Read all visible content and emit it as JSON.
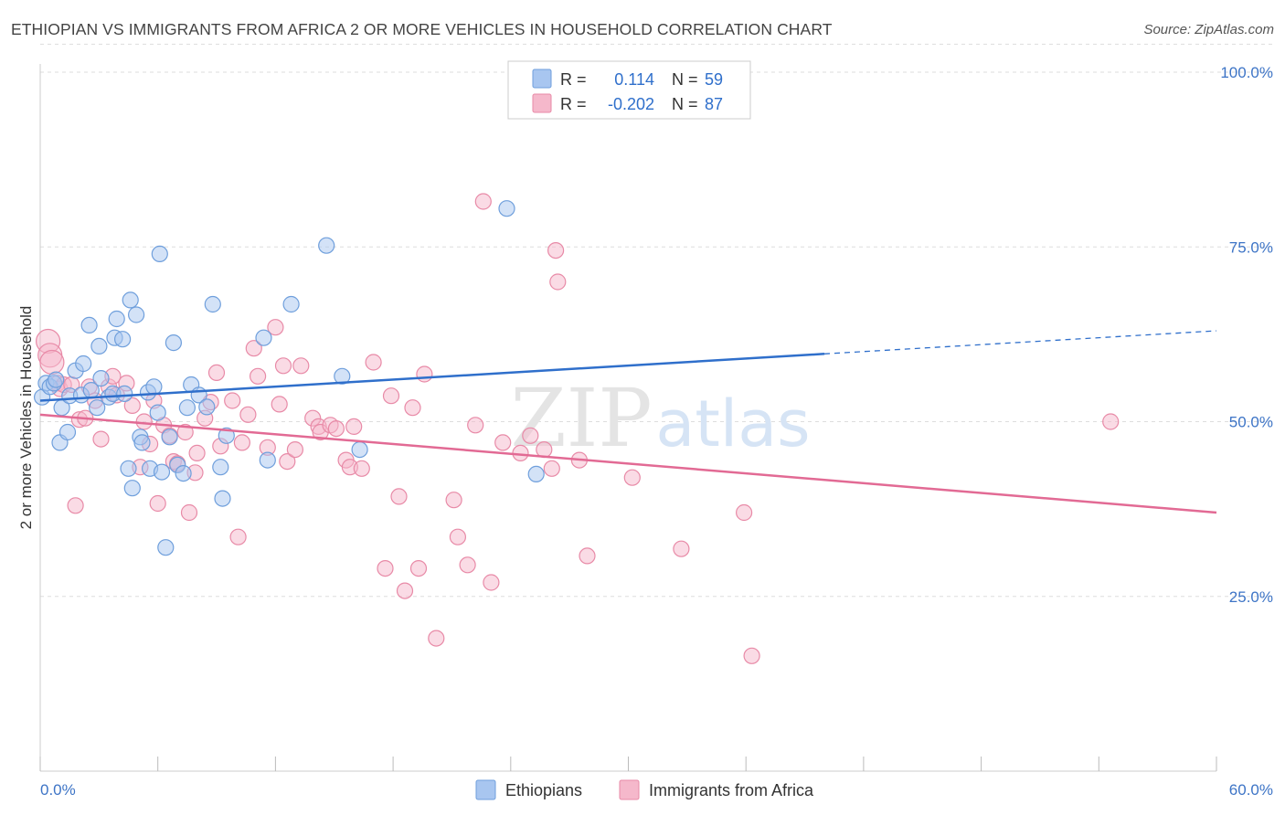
{
  "header": {
    "title": "ETHIOPIAN VS IMMIGRANTS FROM AFRICA 2 OR MORE VEHICLES IN HOUSEHOLD CORRELATION CHART",
    "source": "Source: ZipAtlas.com"
  },
  "watermark": {
    "zip": "ZIP",
    "atlas": "atlas"
  },
  "legend_box": {
    "rows": [
      {
        "r_label": "R =",
        "r_value": "0.114",
        "n_label": "N =",
        "n_value": "59",
        "color": "#a8c6f0"
      },
      {
        "r_label": "R =",
        "r_value": "-0.202",
        "n_label": "N =",
        "n_value": "87",
        "color": "#f5b8cb"
      }
    ]
  },
  "colors": {
    "blue_fill": "#a8c6f0",
    "blue_stroke": "#6f9fdc",
    "blue_line": "#2f6fcb",
    "pink_fill": "#f5b8cb",
    "pink_stroke": "#e88aa7",
    "pink_line": "#e26a94",
    "axis_text": "#3d74c6",
    "grid": "#dddddd"
  },
  "chart_data": {
    "type": "scatter",
    "title": "ETHIOPIAN VS IMMIGRANTS FROM AFRICA 2 OR MORE VEHICLES IN HOUSEHOLD CORRELATION CHART",
    "xlabel": "",
    "ylabel": "2 or more Vehicles in Household",
    "xlim": [
      0,
      60
    ],
    "ylim": [
      0,
      105
    ],
    "x_tick_labels": [
      "0.0%",
      "60.0%"
    ],
    "y_ticks": [
      25,
      50,
      75,
      100
    ],
    "y_tick_labels": [
      "25.0%",
      "50.0%",
      "75.0%",
      "100.0%"
    ],
    "grid": true,
    "legend_position": "bottom",
    "series": [
      {
        "name": "Ethiopians",
        "r": 0.114,
        "n": 59,
        "trend": {
          "x0": 0,
          "y0": 53.0,
          "x1": 40,
          "y1": 59.7,
          "dash_to_x": 60,
          "dash_to_y": 63.0
        },
        "points": [
          [
            0.1,
            53.5
          ],
          [
            0.3,
            55.5
          ],
          [
            0.5,
            55.0
          ],
          [
            0.7,
            55.5
          ],
          [
            0.8,
            56.0
          ],
          [
            1.0,
            47.0
          ],
          [
            1.1,
            52.0
          ],
          [
            1.4,
            48.5
          ],
          [
            1.5,
            53.7
          ],
          [
            1.8,
            57.3
          ],
          [
            2.1,
            53.8
          ],
          [
            2.2,
            58.3
          ],
          [
            2.5,
            63.8
          ],
          [
            2.6,
            54.5
          ],
          [
            2.9,
            52.0
          ],
          [
            3.0,
            60.8
          ],
          [
            3.1,
            56.2
          ],
          [
            3.5,
            53.5
          ],
          [
            3.7,
            54.0
          ],
          [
            3.8,
            62.0
          ],
          [
            3.9,
            64.7
          ],
          [
            4.2,
            61.8
          ],
          [
            4.3,
            54.0
          ],
          [
            4.5,
            43.3
          ],
          [
            4.6,
            67.4
          ],
          [
            4.7,
            40.5
          ],
          [
            4.9,
            65.3
          ],
          [
            5.1,
            47.8
          ],
          [
            5.2,
            47.0
          ],
          [
            5.5,
            54.2
          ],
          [
            5.6,
            43.3
          ],
          [
            5.8,
            55.0
          ],
          [
            6.0,
            51.3
          ],
          [
            6.1,
            74.0
          ],
          [
            6.2,
            42.8
          ],
          [
            6.4,
            32.0
          ],
          [
            6.6,
            47.8
          ],
          [
            6.8,
            61.3
          ],
          [
            7.0,
            43.8
          ],
          [
            7.3,
            42.6
          ],
          [
            7.5,
            52.0
          ],
          [
            7.7,
            55.3
          ],
          [
            8.1,
            53.8
          ],
          [
            8.5,
            52.1
          ],
          [
            8.8,
            66.8
          ],
          [
            9.2,
            43.5
          ],
          [
            9.3,
            39.0
          ],
          [
            9.5,
            48.0
          ],
          [
            11.4,
            62.0
          ],
          [
            11.6,
            44.5
          ],
          [
            12.8,
            66.8
          ],
          [
            14.6,
            75.2
          ],
          [
            15.4,
            56.5
          ],
          [
            16.3,
            46.0
          ],
          [
            23.8,
            80.5
          ],
          [
            25.3,
            42.5
          ]
        ]
      },
      {
        "name": "Immigrants from Africa",
        "r": -0.202,
        "n": 87,
        "trend": {
          "x0": 0,
          "y0": 51.0,
          "x1": 60,
          "y1": 37.0
        },
        "points": [
          [
            0.4,
            61.5
          ],
          [
            0.5,
            59.5
          ],
          [
            0.6,
            58.5
          ],
          [
            0.9,
            55.5
          ],
          [
            1.0,
            54.7
          ],
          [
            1.2,
            55.3
          ],
          [
            1.6,
            55.3
          ],
          [
            1.8,
            38.0
          ],
          [
            2.0,
            50.3
          ],
          [
            2.3,
            50.5
          ],
          [
            2.5,
            55.0
          ],
          [
            2.8,
            53.0
          ],
          [
            3.1,
            47.5
          ],
          [
            3.5,
            55.0
          ],
          [
            3.7,
            56.5
          ],
          [
            3.9,
            53.8
          ],
          [
            4.4,
            55.5
          ],
          [
            4.7,
            52.3
          ],
          [
            5.1,
            43.5
          ],
          [
            5.3,
            50.0
          ],
          [
            5.6,
            46.8
          ],
          [
            5.8,
            53.0
          ],
          [
            6.0,
            38.3
          ],
          [
            6.3,
            49.5
          ],
          [
            6.6,
            48.0
          ],
          [
            6.8,
            44.3
          ],
          [
            7.0,
            44.0
          ],
          [
            7.4,
            48.5
          ],
          [
            7.6,
            37.0
          ],
          [
            7.9,
            42.7
          ],
          [
            8.0,
            45.5
          ],
          [
            8.4,
            50.5
          ],
          [
            8.7,
            52.8
          ],
          [
            9.0,
            57.0
          ],
          [
            9.2,
            46.5
          ],
          [
            9.8,
            53.0
          ],
          [
            10.1,
            33.5
          ],
          [
            10.3,
            47.0
          ],
          [
            10.6,
            51.0
          ],
          [
            10.9,
            60.5
          ],
          [
            11.1,
            56.5
          ],
          [
            11.6,
            46.3
          ],
          [
            12.0,
            63.5
          ],
          [
            12.2,
            52.5
          ],
          [
            12.4,
            58.0
          ],
          [
            12.6,
            44.3
          ],
          [
            13.0,
            46.0
          ],
          [
            13.3,
            58.0
          ],
          [
            13.9,
            50.5
          ],
          [
            14.2,
            49.3
          ],
          [
            14.3,
            48.5
          ],
          [
            14.8,
            49.5
          ],
          [
            15.1,
            49.0
          ],
          [
            15.6,
            44.5
          ],
          [
            15.8,
            43.5
          ],
          [
            16.0,
            49.3
          ],
          [
            16.4,
            43.3
          ],
          [
            17.0,
            58.5
          ],
          [
            17.6,
            29.0
          ],
          [
            17.9,
            53.7
          ],
          [
            18.3,
            39.3
          ],
          [
            18.6,
            25.8
          ],
          [
            19.0,
            52.0
          ],
          [
            19.3,
            29.0
          ],
          [
            19.6,
            56.8
          ],
          [
            20.2,
            19.0
          ],
          [
            21.1,
            38.8
          ],
          [
            21.3,
            33.5
          ],
          [
            21.8,
            29.5
          ],
          [
            22.2,
            49.5
          ],
          [
            22.6,
            81.5
          ],
          [
            23.0,
            27.0
          ],
          [
            23.6,
            47.0
          ],
          [
            24.5,
            45.5
          ],
          [
            25.0,
            48.0
          ],
          [
            25.7,
            46.0
          ],
          [
            26.1,
            43.3
          ],
          [
            26.3,
            74.5
          ],
          [
            26.4,
            70.0
          ],
          [
            27.5,
            44.5
          ],
          [
            27.9,
            30.8
          ],
          [
            30.2,
            42.0
          ],
          [
            32.7,
            31.8
          ],
          [
            35.9,
            37.0
          ],
          [
            36.3,
            16.5
          ],
          [
            54.6,
            50.0
          ]
        ]
      }
    ]
  }
}
